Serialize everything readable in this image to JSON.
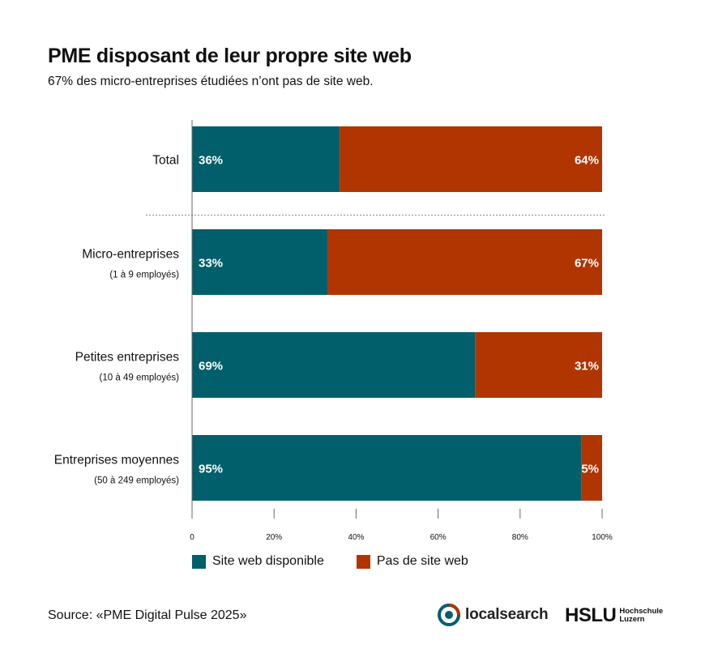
{
  "colors": {
    "site_web": "#005f6b",
    "pas_de_site": "#b03500",
    "axis": "#666666",
    "divider": "#888888"
  },
  "chart_data": {
    "type": "bar",
    "orientation": "horizontal",
    "stacked": true,
    "title": "PME disposant de leur propre site web",
    "subtitle": "67% des micro-entreprises étudiées n’ont pas de site web.",
    "categories": [
      {
        "label": "Total",
        "sublabel": ""
      },
      {
        "label": "Micro-entreprises",
        "sublabel": "(1 à 9 employés)"
      },
      {
        "label": "Petites entreprises",
        "sublabel": "(10 à 49 employés)"
      },
      {
        "label": "Entreprises moyennes",
        "sublabel": "(50 à 249 employés)"
      }
    ],
    "series": [
      {
        "name": "Site web disponible",
        "values": [
          36,
          33,
          69,
          95
        ],
        "labels": [
          "36%",
          "33%",
          "69%",
          "95%"
        ]
      },
      {
        "name": "Pas de site web",
        "values": [
          64,
          67,
          31,
          5
        ],
        "labels": [
          "64%",
          "67%",
          "31%",
          "5%"
        ]
      }
    ],
    "xlim": [
      0,
      100
    ],
    "xticks": [
      0,
      20,
      40,
      60,
      80,
      100
    ],
    "xtick_labels": [
      "0",
      "20%",
      "40%",
      "60%",
      "80%",
      "100%"
    ],
    "legend": "bottom-left",
    "grid": false
  },
  "footer": {
    "source": "Source: «PME Digital Pulse 2025»",
    "logo_localsearch": "localsearch",
    "logo_hslu_main": "HSLU",
    "logo_hslu_sub1": "Hochschule",
    "logo_hslu_sub2": "Luzern"
  }
}
